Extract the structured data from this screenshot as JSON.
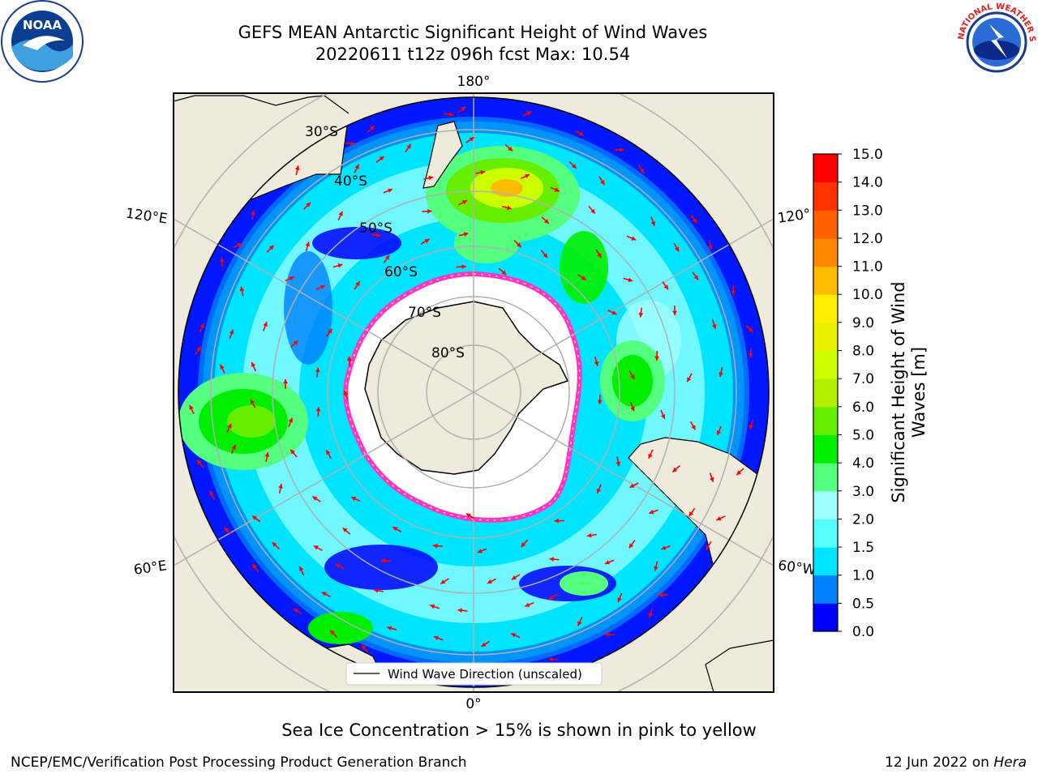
{
  "title": {
    "line1": "GEFS MEAN Antarctic Significant Height of Wind Waves",
    "line2": "20220611 t12z 096h fcst   Max: 10.54"
  },
  "logos": {
    "left": {
      "icon": "noaa-logo-icon",
      "text": "NOAA"
    },
    "right": {
      "icon": "national-weather-service-logo-icon",
      "text": "NATIONAL WEATHER SERVICE"
    }
  },
  "map": {
    "projection": "south-polar-stereographic",
    "longitude_labels": {
      "top": "180°",
      "bottom": "0°",
      "upper_left": "120°E",
      "upper_right": "120°",
      "lower_left": "60°E",
      "lower_right": "60°W"
    },
    "latitude_labels": [
      "30°S",
      "40°S",
      "50°S",
      "60°S",
      "70°S",
      "80°S"
    ],
    "legend_label": "Wind Wave Direction (unscaled)",
    "vector_color": "#ff0000",
    "land_color": "#efebdc"
  },
  "chart_data": {
    "type": "heatmap",
    "field": "significant height of wind waves",
    "max_value": 10.54,
    "colorbar": {
      "label": "Significant Height of Wind Waves [m]",
      "ticks": [
        "0.0",
        "0.5",
        "1.0",
        "1.5",
        "2.0",
        "3.0",
        "4.0",
        "5.0",
        "6.0",
        "7.0",
        "8.0",
        "9.0",
        "10.0",
        "11.0",
        "12.0",
        "13.0",
        "14.0",
        "15.0"
      ],
      "bins": [
        {
          "from": 0.0,
          "to": 0.5,
          "color": "#0000ff"
        },
        {
          "from": 0.5,
          "to": 1.0,
          "color": "#0080ff"
        },
        {
          "from": 1.0,
          "to": 1.5,
          "color": "#00e5ff"
        },
        {
          "from": 1.5,
          "to": 2.0,
          "color": "#55ffff"
        },
        {
          "from": 2.0,
          "to": 3.0,
          "color": "#a0ffff"
        },
        {
          "from": 3.0,
          "to": 4.0,
          "color": "#55ff80"
        },
        {
          "from": 4.0,
          "to": 5.0,
          "color": "#00ee00"
        },
        {
          "from": 5.0,
          "to": 6.0,
          "color": "#66ee00"
        },
        {
          "from": 6.0,
          "to": 7.0,
          "color": "#b0f000"
        },
        {
          "from": 7.0,
          "to": 8.0,
          "color": "#ccff00"
        },
        {
          "from": 8.0,
          "to": 9.0,
          "color": "#e8f000"
        },
        {
          "from": 9.0,
          "to": 10.0,
          "color": "#ffee00"
        },
        {
          "from": 10.0,
          "to": 11.0,
          "color": "#ffbb00"
        },
        {
          "from": 11.0,
          "to": 12.0,
          "color": "#ff8800"
        },
        {
          "from": 12.0,
          "to": 13.0,
          "color": "#ff6000"
        },
        {
          "from": 13.0,
          "to": 14.0,
          "color": "#ff3300"
        },
        {
          "from": 14.0,
          "to": 15.0,
          "color": "#ff0000"
        }
      ]
    }
  },
  "footer": {
    "sea_ice_note": "Sea Ice Concentration > 15% is shown in pink to yellow",
    "credit": "NCEP/EMC/Verification Post Processing Product Generation Branch",
    "date": "12 Jun 2022 on",
    "host": "Hera"
  }
}
